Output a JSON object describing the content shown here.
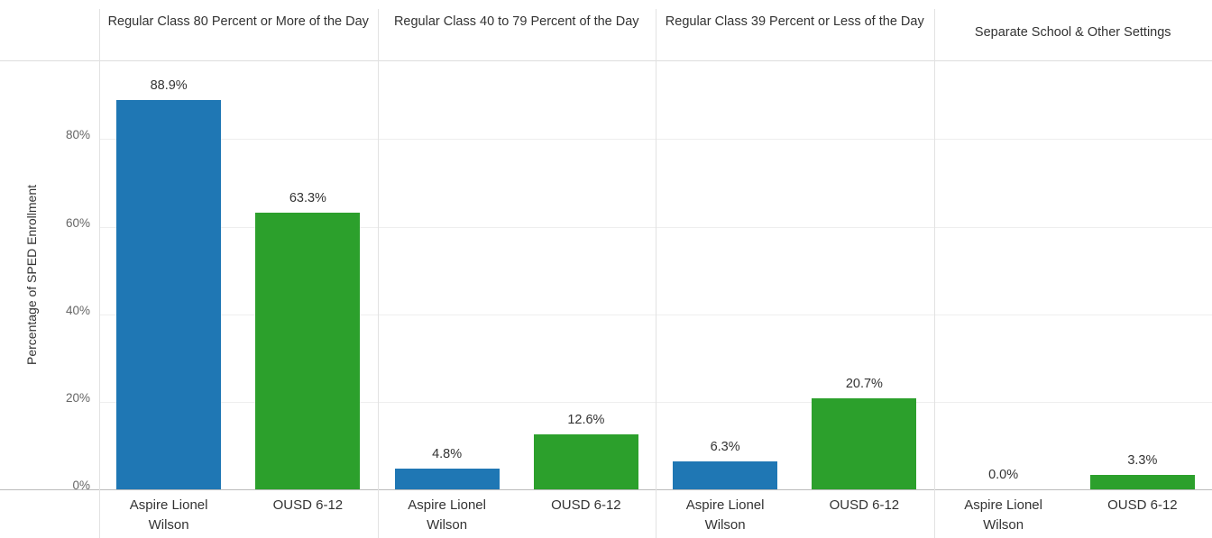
{
  "chart_data": {
    "type": "bar",
    "y_label": "Percentage of SPED Enrollment",
    "categories": [
      "Regular Class 80 Percent or More of the Day",
      "Regular Class 40 to 79 Percent of the Day",
      "Regular Class 39 Percent or Less of the Day",
      "Separate School & Other Settings"
    ],
    "series": [
      {
        "name": "Aspire Lionel Wilson",
        "color": "#1f77b4",
        "values": [
          88.9,
          4.8,
          6.3,
          0.0
        ],
        "value_labels": [
          "88.9%",
          "4.8%",
          "6.3%",
          "0.0%"
        ]
      },
      {
        "name": "OUSD 6-12",
        "color": "#2ca02c",
        "values": [
          63.3,
          12.6,
          20.7,
          3.3
        ],
        "value_labels": [
          "63.3%",
          "12.6%",
          "20.7%",
          "3.3%"
        ]
      }
    ],
    "ylim": [
      0,
      98
    ],
    "yticks": [
      {
        "value": 0,
        "label": "0%"
      },
      {
        "value": 20,
        "label": "20%"
      },
      {
        "value": 40,
        "label": "40%"
      },
      {
        "value": 60,
        "label": "60%"
      },
      {
        "value": 80,
        "label": "80%"
      }
    ],
    "grid": true
  }
}
